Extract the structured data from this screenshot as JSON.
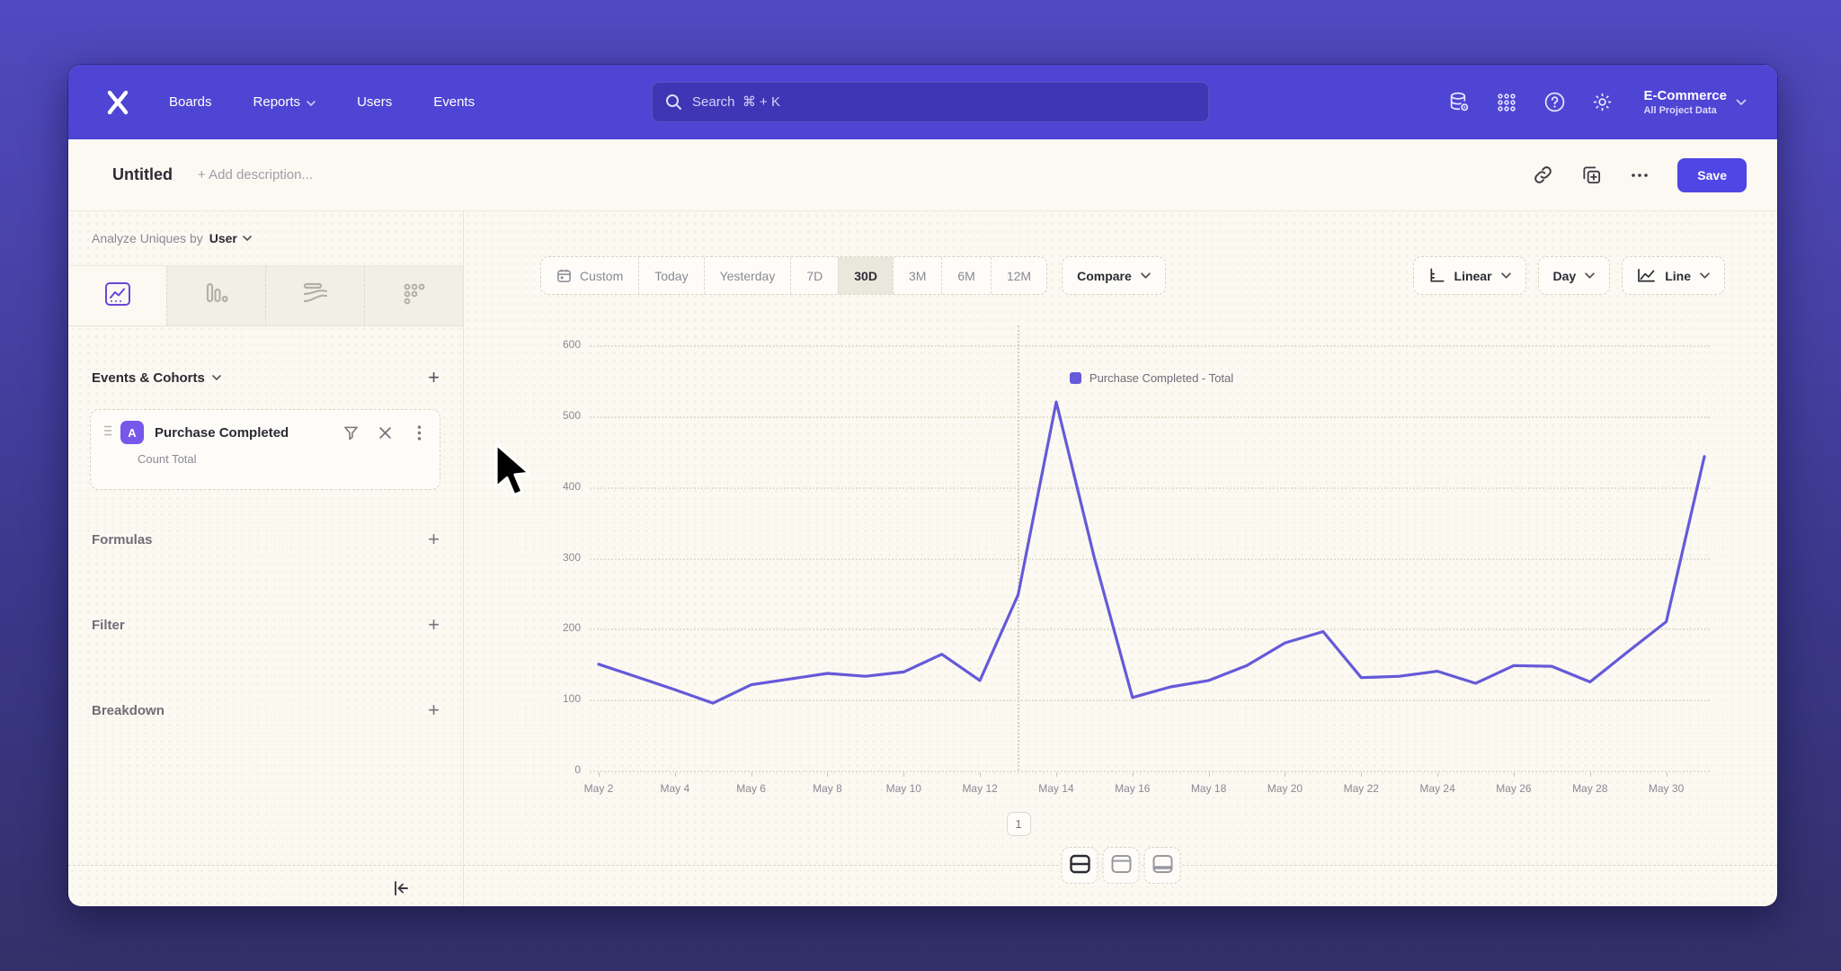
{
  "nav": {
    "items": [
      {
        "label": "Boards",
        "chevron": false
      },
      {
        "label": "Reports",
        "chevron": true
      },
      {
        "label": "Users",
        "chevron": false
      },
      {
        "label": "Events",
        "chevron": false
      }
    ],
    "search_placeholder": "Search  ⌘ + K",
    "right_icons": [
      "data-management-icon",
      "apps-grid-icon",
      "help-icon",
      "settings-gear-icon"
    ],
    "project_name": "E-Commerce",
    "project_subtitle": "All Project Data"
  },
  "toolbar": {
    "title": "Untitled",
    "description_placeholder": "+ Add description...",
    "icons": [
      "copy-link-icon",
      "duplicate-icon",
      "more-options-icon"
    ],
    "save_label": "Save"
  },
  "sidebar": {
    "analyze_label": "Analyze Uniques by",
    "analyze_value": "User",
    "tabs": [
      "insights-line-tab",
      "bar-chart-tab",
      "flow-tab",
      "retention-tab"
    ],
    "active_tab": 0,
    "events_header": "Events & Cohorts",
    "event_card": {
      "badge": "A",
      "title": "Purchase Completed",
      "subtitle": "Count Total"
    },
    "sections": [
      {
        "label": "Formulas"
      },
      {
        "label": "Filter"
      },
      {
        "label": "Breakdown"
      }
    ]
  },
  "controls": {
    "ranges": [
      "Custom",
      "Today",
      "Yesterday",
      "7D",
      "30D",
      "3M",
      "6M",
      "12M"
    ],
    "active_range": "30D",
    "compare_label": "Compare",
    "scale_label": "Linear",
    "interval_label": "Day",
    "chart_type_label": "Line"
  },
  "chart_data": {
    "type": "line",
    "legend": "Purchase Completed - Total",
    "series_color": "#655ad8",
    "x": [
      "May 2",
      "May 3",
      "May 4",
      "May 5",
      "May 6",
      "May 7",
      "May 8",
      "May 9",
      "May 10",
      "May 11",
      "May 12",
      "May 13",
      "May 14",
      "May 15",
      "May 16",
      "May 17",
      "May 18",
      "May 19",
      "May 20",
      "May 21",
      "May 22",
      "May 23",
      "May 24",
      "May 25",
      "May 26",
      "May 27",
      "May 28",
      "May 29",
      "May 30",
      "May 31"
    ],
    "values": [
      150,
      132,
      114,
      95,
      121,
      129,
      137,
      133,
      139,
      164,
      127,
      248,
      520,
      300,
      103,
      118,
      127,
      148,
      180,
      196,
      131,
      133,
      140,
      123,
      148,
      147,
      125,
      168,
      210,
      443
    ],
    "ylim": [
      0,
      600
    ],
    "yticks": [
      0,
      100,
      200,
      300,
      400,
      500,
      600
    ],
    "x_label_every": 2,
    "grid": true,
    "legend_position": "top-center",
    "annotation": {
      "label": "1",
      "x": "May 13"
    }
  },
  "footer": {
    "layout_buttons": [
      "layout-split-rows-icon",
      "layout-header-top-icon",
      "layout-footer-bottom-icon"
    ],
    "active_layout": 0
  }
}
